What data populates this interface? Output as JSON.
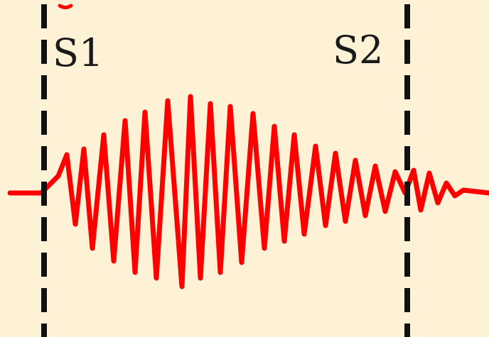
{
  "figure": {
    "background_color": "#fdf2d6",
    "signal_color": "#ff0000",
    "marker_color": "#111111",
    "markers": [
      {
        "label": "S1"
      },
      {
        "label": "S2"
      }
    ]
  }
}
